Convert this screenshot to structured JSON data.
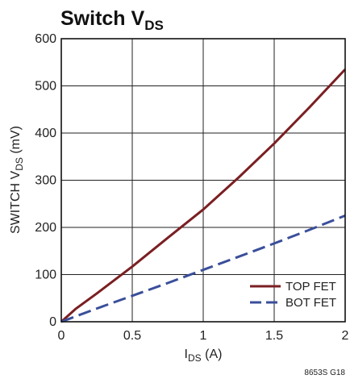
{
  "chart_data": {
    "type": "line",
    "title": {
      "main": "Switch V",
      "sub": "DS"
    },
    "xlabel": {
      "main": "I",
      "sub": "DS",
      "unit": " (A)"
    },
    "ylabel": {
      "main": "SWITCH V",
      "sub": "DS",
      "unit": " (mV)"
    },
    "xlim": [
      0,
      2
    ],
    "ylim": [
      0,
      600
    ],
    "xticks": [
      0,
      0.5,
      1,
      1.5,
      2
    ],
    "xtick_labels": [
      "0",
      "0.5",
      "1",
      "1.5",
      "2"
    ],
    "yticks": [
      0,
      100,
      200,
      300,
      400,
      500,
      600
    ],
    "ytick_labels": [
      "0",
      "100",
      "200",
      "300",
      "400",
      "500",
      "600"
    ],
    "grid": true,
    "legend_position": "bottom-right",
    "series": [
      {
        "name": "TOP FET",
        "color": "#7a1f23",
        "dash": "solid",
        "x": [
          0,
          0.1,
          0.25,
          0.5,
          0.75,
          1.0,
          1.25,
          1.5,
          1.75,
          2.0
        ],
        "y": [
          0,
          27,
          60,
          117,
          178,
          238,
          306,
          378,
          455,
          535
        ]
      },
      {
        "name": "BOT FET",
        "color": "#3a4f9a",
        "dash": "dashed",
        "x": [
          0,
          0.25,
          0.5,
          0.75,
          1.0,
          1.25,
          1.5,
          1.75,
          2.0
        ],
        "y": [
          0,
          28,
          55,
          82,
          110,
          138,
          166,
          195,
          225
        ]
      }
    ],
    "figure_code": "8653S G18"
  }
}
